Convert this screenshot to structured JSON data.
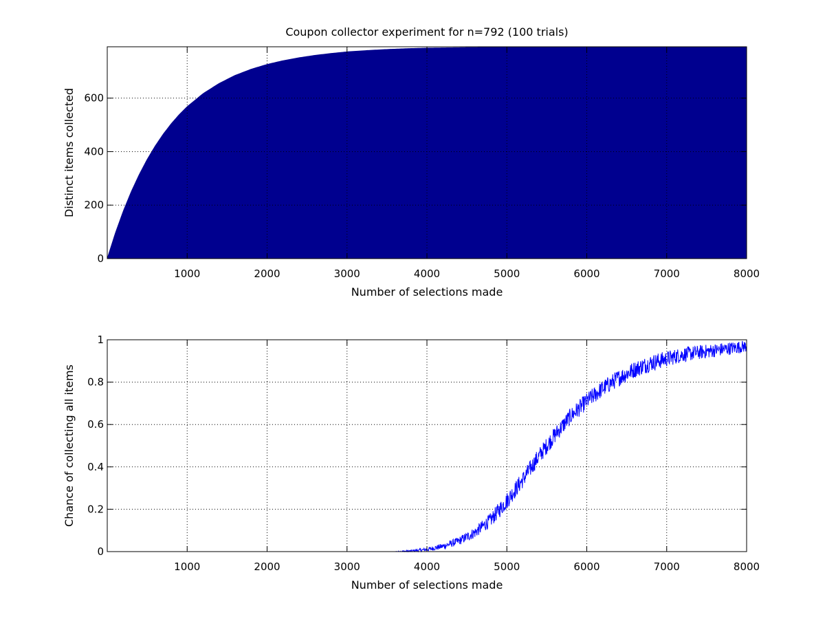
{
  "figure": {
    "background": "#ffffff"
  },
  "chart_data": [
    {
      "type": "area",
      "title": "Coupon collector experiment for n=792 (100 trials)",
      "xlabel": "Number of selections made",
      "ylabel": "Distinct items collected",
      "xlim": [
        0,
        8000
      ],
      "ylim": [
        0,
        792
      ],
      "xticks": [
        1000,
        2000,
        3000,
        4000,
        5000,
        6000,
        7000,
        8000
      ],
      "yticks": [
        0,
        200,
        400,
        600
      ],
      "grid": true,
      "color": "#00008f",
      "x": [
        0,
        100,
        200,
        300,
        400,
        500,
        600,
        700,
        800,
        900,
        1000,
        1200,
        1400,
        1600,
        1800,
        2000,
        2200,
        2400,
        2600,
        2800,
        3000,
        3250,
        3500,
        3750,
        4000,
        4500,
        5000,
        5500,
        6000,
        6500,
        7000,
        7500,
        8000
      ],
      "y": [
        0,
        94,
        177,
        250,
        314,
        371,
        421,
        465,
        504,
        538,
        568,
        617,
        655,
        685,
        708,
        726,
        740,
        751,
        760,
        767,
        773,
        778,
        782,
        785,
        787,
        789,
        790,
        791,
        791,
        792,
        792,
        792,
        792
      ]
    },
    {
      "type": "line",
      "title": "",
      "xlabel": "Number of selections made",
      "ylabel": "Chance of collecting all items",
      "xlim": [
        0,
        8000
      ],
      "ylim": [
        0,
        1
      ],
      "xticks": [
        1000,
        2000,
        3000,
        4000,
        5000,
        6000,
        7000,
        8000
      ],
      "yticks": [
        0,
        0.2,
        0.4,
        0.6,
        0.8,
        1
      ],
      "ytick_labels": [
        "0",
        "0.2",
        "0.4",
        "0.6",
        "0.8",
        "1"
      ],
      "grid": true,
      "color": "#0000ff",
      "x": [
        3400,
        3600,
        3800,
        4000,
        4200,
        4400,
        4600,
        4800,
        5000,
        5200,
        5400,
        5600,
        5800,
        6000,
        6200,
        6400,
        6600,
        6800,
        7000,
        7200,
        7400,
        7600,
        7800,
        8000
      ],
      "y": [
        0.0,
        0.0,
        0.003,
        0.01,
        0.025,
        0.05,
        0.09,
        0.15,
        0.24,
        0.34,
        0.45,
        0.55,
        0.64,
        0.71,
        0.77,
        0.82,
        0.86,
        0.89,
        0.91,
        0.93,
        0.94,
        0.95,
        0.96,
        0.97
      ],
      "noise": 0.04
    }
  ]
}
